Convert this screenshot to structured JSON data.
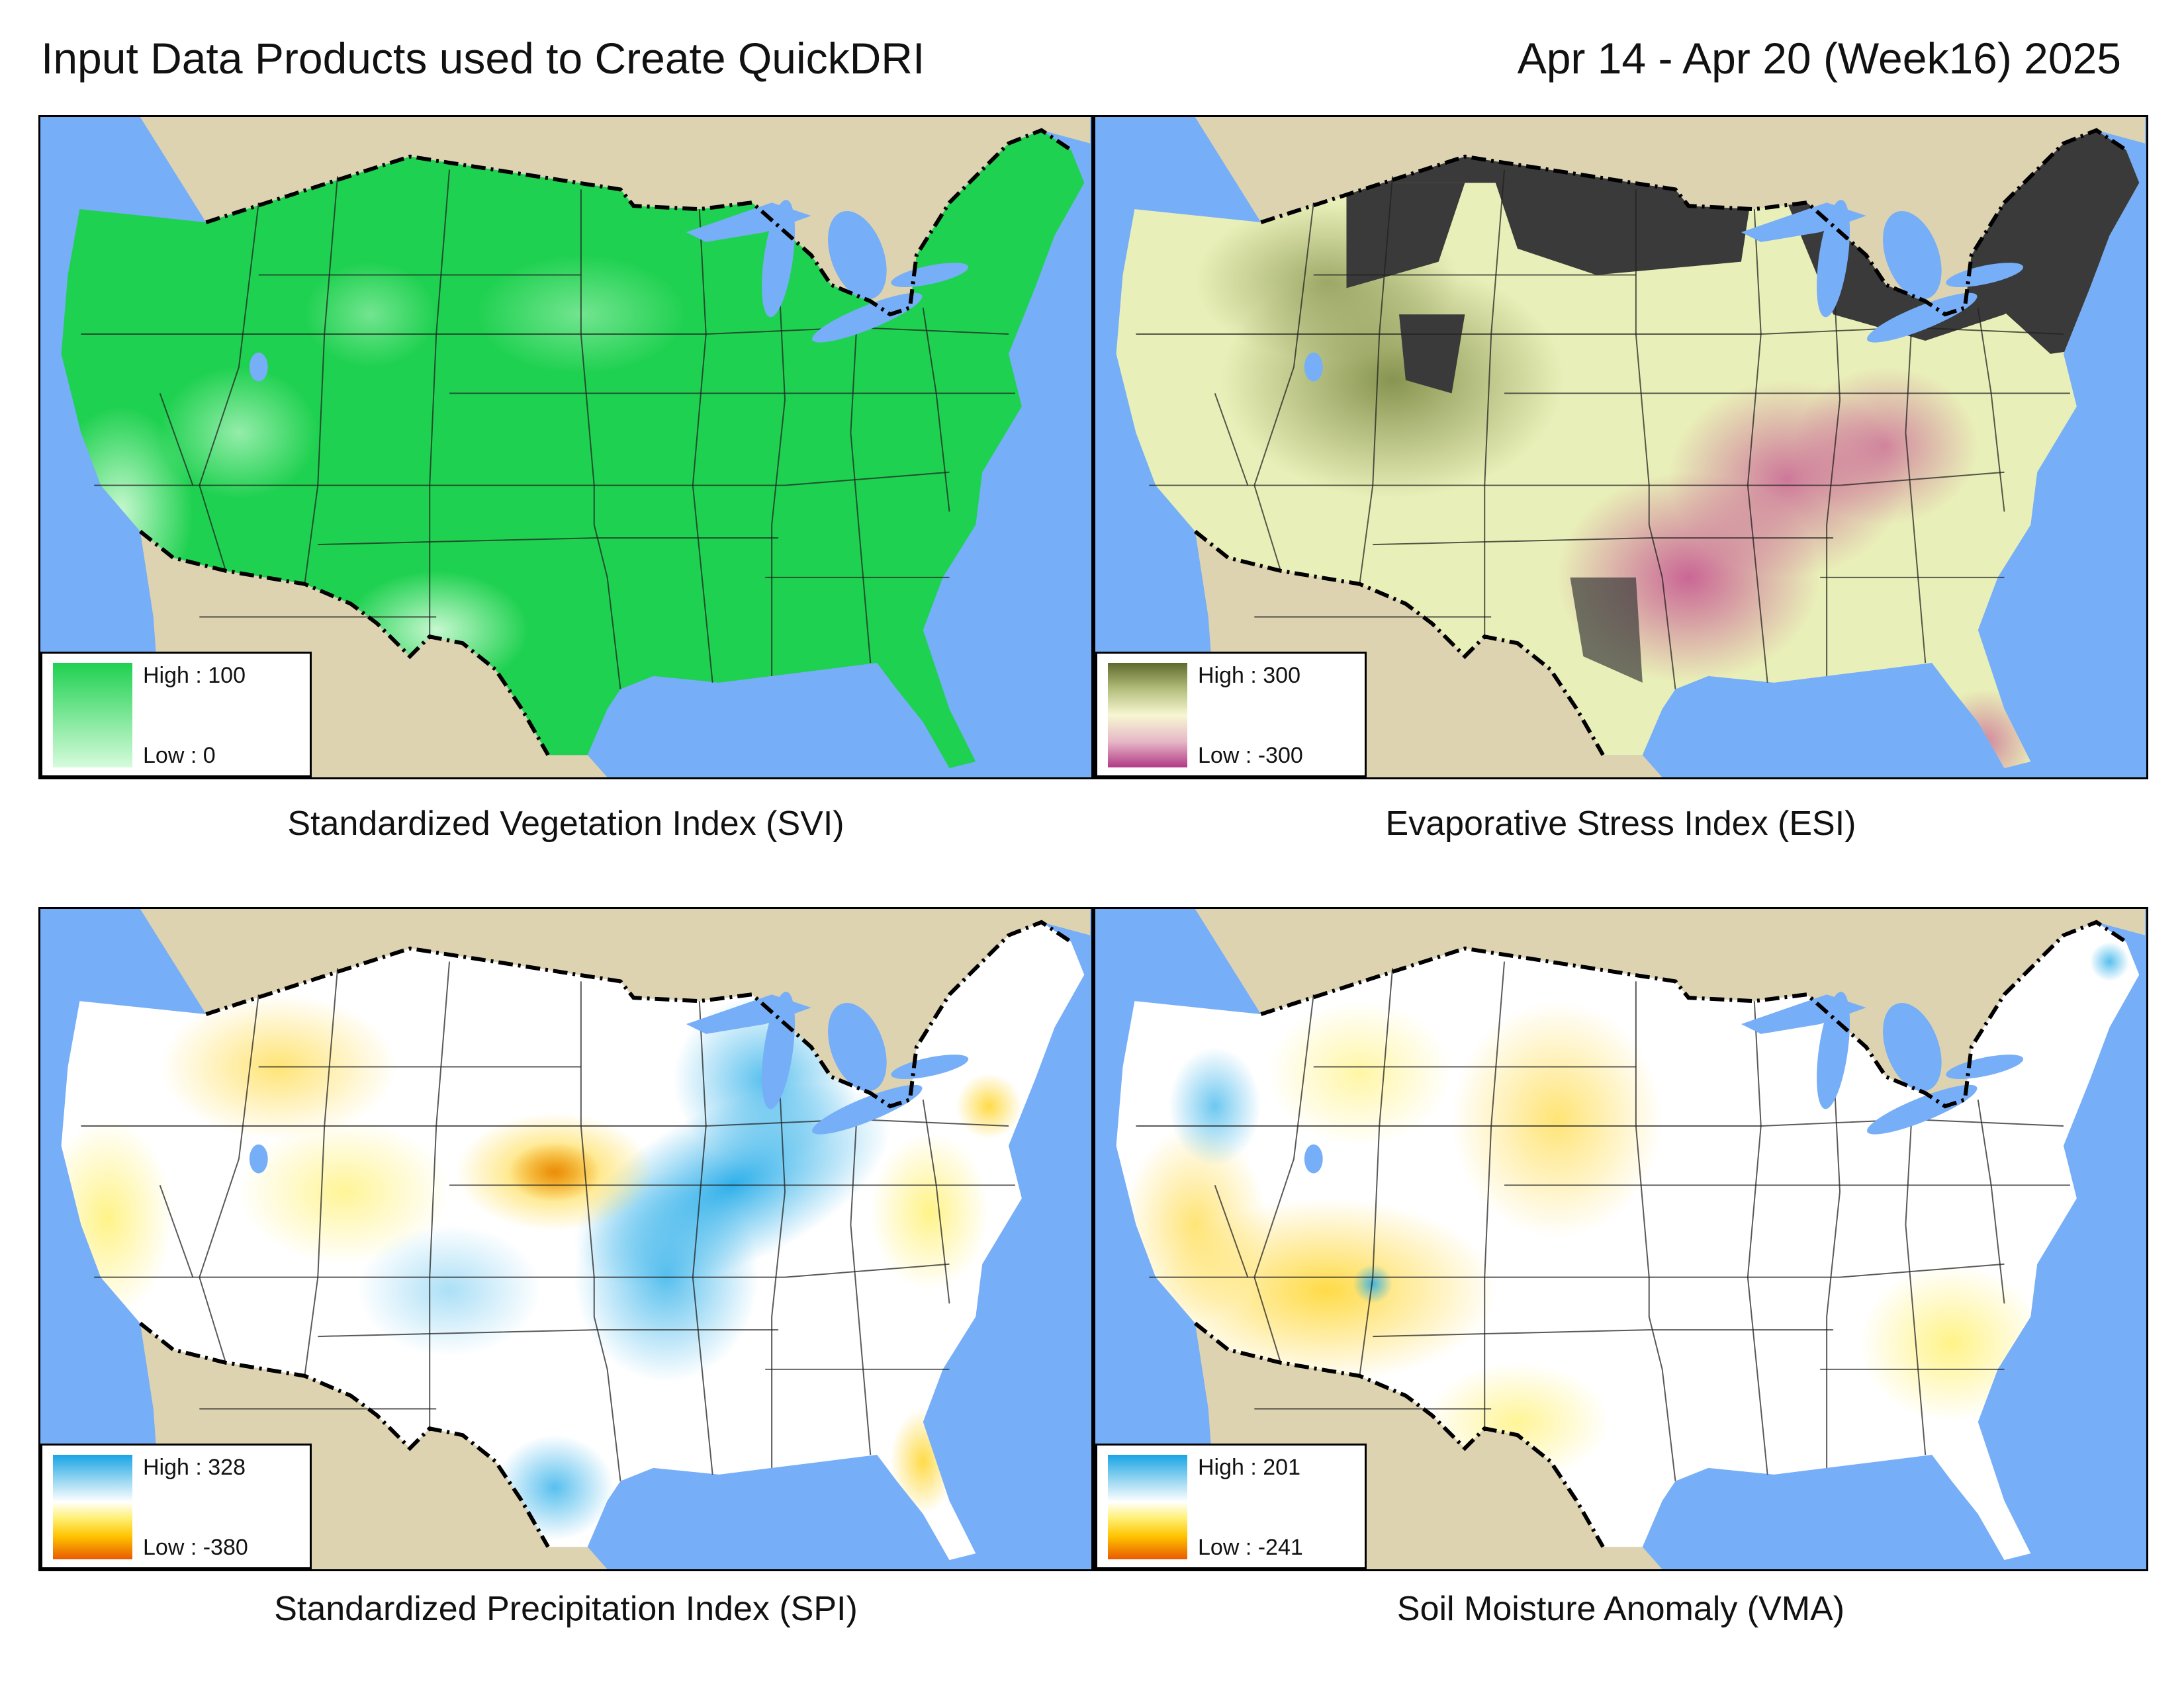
{
  "header": {
    "title": "Input Data Products used to Create QuickDRI",
    "period": "Apr 14 - Apr 20 (Week16) 2025"
  },
  "panels": [
    {
      "id": "svi",
      "caption": "Standardized Vegetation Index (SVI)",
      "legend": {
        "high": "High : 100",
        "low": "Low : 0"
      },
      "colors": {
        "base": "#1fd150",
        "light": "#bff7c9",
        "land_bg": "#ddd3b0",
        "water": "#76aef8"
      }
    },
    {
      "id": "esi",
      "caption": "Evaporative Stress Index (ESI)",
      "legend": {
        "high": "High : 300",
        "low": "Low : -300"
      },
      "colors": {
        "base": "#e9efb8",
        "olive": "#7d8a40",
        "pink": "#c45a98",
        "nodata": "#3a3a3a",
        "land_bg": "#ddd3b0",
        "water": "#76aef8"
      }
    },
    {
      "id": "spi",
      "caption": "Standardized Precipitation Index (SPI)",
      "legend": {
        "high": "High : 328",
        "low": "Low : -380"
      },
      "colors": {
        "base": "#ffffff",
        "wet": "#3fb6ea",
        "dry": "#ffd21a",
        "very_dry": "#e57a00",
        "land_bg": "#ddd3b0",
        "water": "#76aef8"
      }
    },
    {
      "id": "vma",
      "caption": "Soil Moisture Anomaly (VMA)",
      "legend": {
        "high": "High : 201",
        "low": "Low : -241"
      },
      "colors": {
        "base": "#ffffff",
        "wet": "#3fb6ea",
        "dry": "#ffe24a",
        "very_dry": "#e5a000",
        "land_bg": "#ddd3b0",
        "water": "#76aef8"
      }
    }
  ]
}
